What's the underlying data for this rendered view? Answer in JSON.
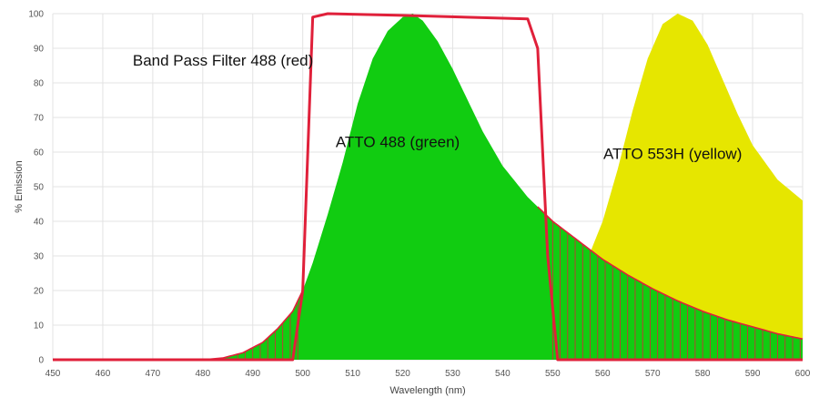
{
  "chart_data": {
    "type": "area",
    "xlabel": "Wavelength (nm)",
    "ylabel": "% Emission",
    "xlim": [
      450,
      600
    ],
    "ylim": [
      0,
      100
    ],
    "x_ticks": [
      "450",
      "460",
      "470",
      "480",
      "490",
      "500",
      "510",
      "520",
      "530",
      "540",
      "550",
      "560",
      "570",
      "580",
      "590",
      "600"
    ],
    "y_ticks": [
      "0",
      "10",
      "20",
      "30",
      "40",
      "50",
      "60",
      "70",
      "80",
      "90",
      "100"
    ],
    "grid": true,
    "colors": {
      "red": "#e0203a",
      "green": "#11cc11",
      "yellow": "#e6e600",
      "grid": "#e3e3e3"
    },
    "series": [
      {
        "name": "ATTO 488 (green)",
        "color": "#11cc11",
        "x": [
          480,
          484,
          488,
          492,
          495,
          498,
          500,
          502,
          505,
          508,
          511,
          514,
          517,
          520,
          522,
          524,
          527,
          530,
          533,
          536,
          540,
          545,
          550,
          555,
          560,
          565,
          570,
          575,
          580,
          585,
          590,
          595,
          600
        ],
        "y": [
          0,
          0.5,
          2,
          5,
          9,
          14,
          20,
          28,
          42,
          57,
          74,
          87,
          95,
          99,
          100,
          98,
          92,
          84,
          75,
          66,
          56,
          47,
          40,
          34.5,
          29,
          24.5,
          20.5,
          17,
          14,
          11.5,
          9.5,
          7.5,
          6
        ]
      },
      {
        "name": "ATTO 553H (yellow)",
        "color": "#e6e600",
        "x": [
          530,
          535,
          540,
          545,
          550,
          555,
          560,
          563,
          566,
          569,
          572,
          575,
          578,
          581,
          584,
          587,
          590,
          595,
          600
        ],
        "y": [
          0,
          1,
          3,
          6,
          12,
          22,
          40,
          55,
          72,
          87,
          97,
          100,
          98,
          91,
          81,
          71,
          62,
          52,
          46
        ]
      },
      {
        "name": "Band Pass Filter 488 (red)",
        "color": "#e0203a",
        "x": [
          450,
          498,
          500,
          502,
          505,
          520,
          545,
          547,
          549,
          551,
          600
        ],
        "y": [
          0,
          0,
          20,
          99,
          100,
          99.5,
          98.5,
          90,
          30,
          0,
          0
        ]
      }
    ],
    "annotations": [
      {
        "text": "Band Pass Filter 488 (red)",
        "x": 466,
        "y": 85
      },
      {
        "text": "ATTO 488 (green)",
        "x": 519,
        "y": 61.5
      },
      {
        "text": "ATTO 553H (yellow)",
        "x": 574,
        "y": 58
      }
    ]
  }
}
